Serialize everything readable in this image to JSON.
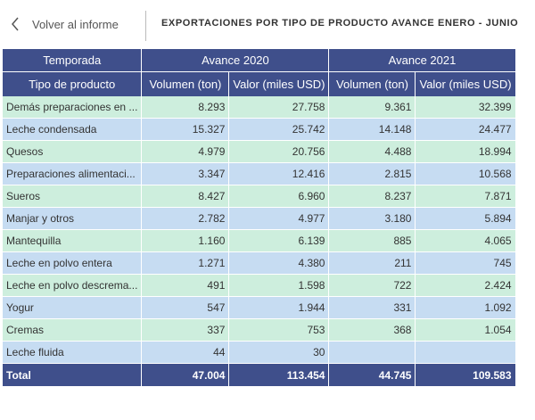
{
  "header": {
    "back_label": "Volver al informe",
    "title": "EXPORTACIONES POR TIPO DE PRODUCTO AVANCE ENERO - JUNIO"
  },
  "table": {
    "group_headers": [
      "Temporada",
      "Avance 2020",
      "Avance 2021"
    ],
    "columns": [
      "Tipo de producto",
      "Volumen (ton)",
      "Valor (miles USD)",
      "Volumen (ton)",
      "Valor (miles USD)"
    ],
    "rows": [
      [
        "Demás preparaciones en ...",
        "8.293",
        "27.758",
        "9.361",
        "32.399"
      ],
      [
        "Leche condensada",
        "15.327",
        "25.742",
        "14.148",
        "24.477"
      ],
      [
        "Quesos",
        "4.979",
        "20.756",
        "4.488",
        "18.994"
      ],
      [
        "Preparaciones alimentaci...",
        "3.347",
        "12.416",
        "2.815",
        "10.568"
      ],
      [
        "Sueros",
        "8.427",
        "6.960",
        "8.237",
        "7.871"
      ],
      [
        "Manjar y otros",
        "2.782",
        "4.977",
        "3.180",
        "5.894"
      ],
      [
        "Mantequilla",
        "1.160",
        "6.139",
        "885",
        "4.065"
      ],
      [
        "Leche en polvo entera",
        "1.271",
        "4.380",
        "211",
        "745"
      ],
      [
        "Leche en polvo descrema...",
        "491",
        "1.598",
        "722",
        "2.424"
      ],
      [
        "Yogur",
        "547",
        "1.944",
        "331",
        "1.092"
      ],
      [
        "Cremas",
        "337",
        "753",
        "368",
        "1.054"
      ],
      [
        "Leche fluida",
        "44",
        "30",
        null,
        null
      ]
    ],
    "total": [
      "Total",
      "47.004",
      "113.454",
      "44.745",
      "109.583"
    ]
  }
}
